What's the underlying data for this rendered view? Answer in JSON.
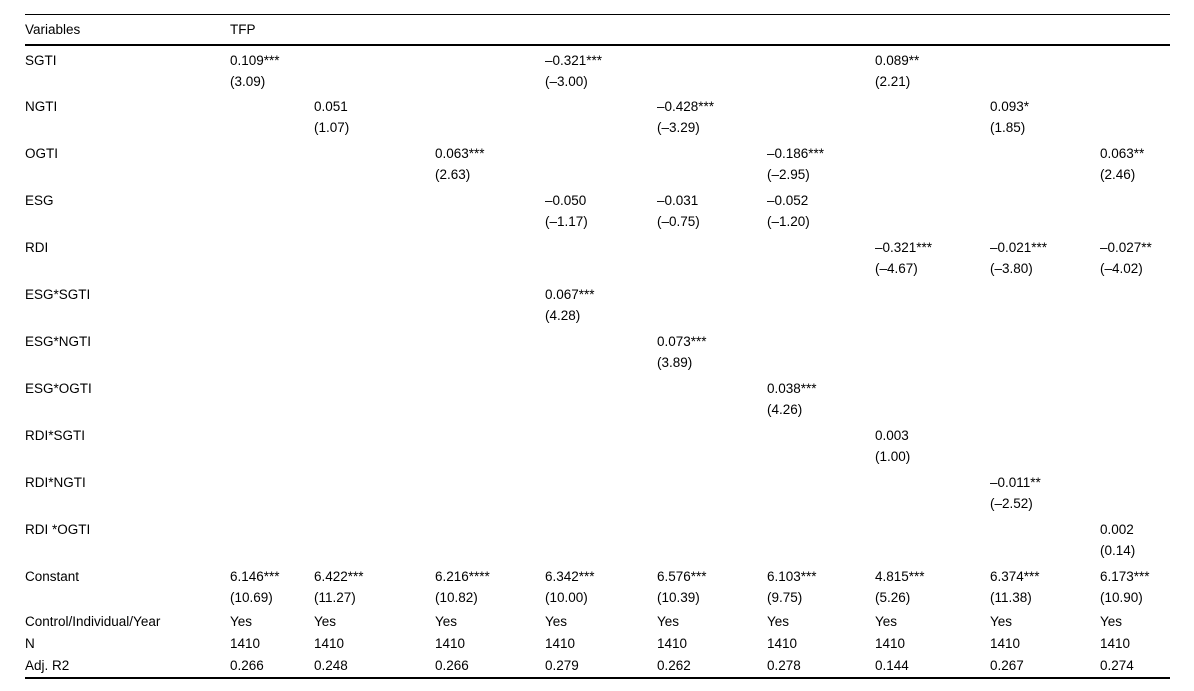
{
  "table": {
    "header": {
      "variables": "Variables",
      "dv": "TFP"
    },
    "coef_rows": [
      {
        "label": "SGTI",
        "cells": [
          [
            "0.109***",
            "(3.09)"
          ],
          null,
          null,
          [
            "–0.321***",
            "(–3.00)"
          ],
          null,
          null,
          [
            "0.089**",
            "(2.21)"
          ],
          null,
          null
        ]
      },
      {
        "label": "NGTI",
        "cells": [
          null,
          [
            "0.051",
            "(1.07)"
          ],
          null,
          null,
          [
            "–0.428***",
            "(–3.29)"
          ],
          null,
          null,
          [
            "0.093*",
            "(1.85)"
          ],
          null
        ]
      },
      {
        "label": "OGTI",
        "cells": [
          null,
          null,
          [
            "0.063***",
            "(2.63)"
          ],
          null,
          null,
          [
            "–0.186***",
            "(–2.95)"
          ],
          null,
          null,
          [
            "0.063**",
            "(2.46)"
          ]
        ]
      },
      {
        "label": "ESG",
        "cells": [
          null,
          null,
          null,
          [
            "–0.050",
            "(–1.17)"
          ],
          [
            "–0.031",
            "(–0.75)"
          ],
          [
            "–0.052",
            "(–1.20)"
          ],
          null,
          null,
          null
        ]
      },
      {
        "label": "RDI",
        "cells": [
          null,
          null,
          null,
          null,
          null,
          null,
          [
            "–0.321***",
            "(–4.67)"
          ],
          [
            "–0.021***",
            "(–3.80)"
          ],
          [
            "–0.027**",
            "(–4.02)"
          ]
        ]
      },
      {
        "label": "ESG*SGTI",
        "cells": [
          null,
          null,
          null,
          [
            "0.067***",
            "(4.28)"
          ],
          null,
          null,
          null,
          null,
          null
        ]
      },
      {
        "label": "ESG*NGTI",
        "cells": [
          null,
          null,
          null,
          null,
          [
            "0.073***",
            "(3.89)"
          ],
          null,
          null,
          null,
          null
        ]
      },
      {
        "label": "ESG*OGTI",
        "cells": [
          null,
          null,
          null,
          null,
          null,
          [
            "0.038***",
            "(4.26)"
          ],
          null,
          null,
          null
        ]
      },
      {
        "label": "RDI*SGTI",
        "cells": [
          null,
          null,
          null,
          null,
          null,
          null,
          [
            "0.003",
            "(1.00)"
          ],
          null,
          null
        ]
      },
      {
        "label": "RDI*NGTI",
        "cells": [
          null,
          null,
          null,
          null,
          null,
          null,
          null,
          [
            "–0.011**",
            "(–2.52)"
          ],
          null
        ]
      },
      {
        "label": "RDI *OGTI",
        "cells": [
          null,
          null,
          null,
          null,
          null,
          null,
          null,
          null,
          [
            "0.002",
            "(0.14)"
          ]
        ]
      },
      {
        "label": "Constant",
        "cells": [
          [
            "6.146***",
            "(10.69)"
          ],
          [
            "6.422***",
            "(11.27)"
          ],
          [
            "6.216****",
            "(10.82)"
          ],
          [
            "6.342***",
            "(10.00)"
          ],
          [
            "6.576***",
            "(10.39)"
          ],
          [
            "6.103***",
            "(9.75)"
          ],
          [
            "4.815***",
            "(5.26)"
          ],
          [
            "6.374***",
            "(11.38)"
          ],
          [
            "6.173***",
            "(10.90)"
          ]
        ]
      }
    ],
    "info_rows": [
      {
        "label": "Control/Individual/Year",
        "cells": [
          "Yes",
          "Yes",
          "Yes",
          "Yes",
          "Yes",
          "Yes",
          "Yes",
          "Yes",
          "Yes"
        ]
      },
      {
        "label": "N",
        "cells": [
          "1410",
          "1410",
          "1410",
          "1410",
          "1410",
          "1410",
          "1410",
          "1410",
          "1410"
        ]
      },
      {
        "label": "Adj. R2",
        "cells": [
          "0.266",
          "0.248",
          "0.266",
          "0.279",
          "0.262",
          "0.278",
          "0.144",
          "0.267",
          "0.274"
        ]
      }
    ]
  }
}
